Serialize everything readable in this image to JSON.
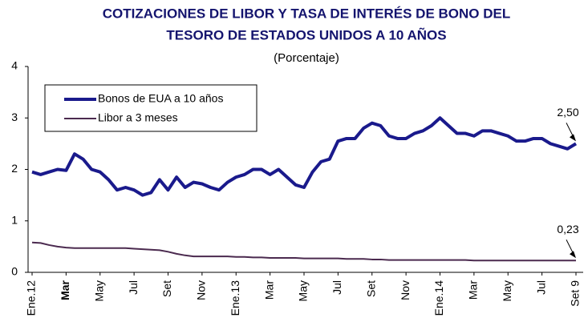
{
  "chart_data": {
    "type": "line",
    "title": [
      "COTIZACIONES DE LIBOR Y TASA DE INTERÉS DE BONO DEL",
      "TESORO DE ESTADOS UNIDOS A 10 AÑOS"
    ],
    "subtitle": "(Porcentaje)",
    "categories": [
      "Ene.12",
      null,
      null,
      null,
      "Mar",
      null,
      null,
      null,
      "May",
      null,
      null,
      null,
      "Jul",
      null,
      null,
      null,
      "Set",
      null,
      null,
      null,
      "Nov",
      null,
      null,
      null,
      "Ene.13",
      null,
      null,
      null,
      "Mar",
      null,
      null,
      null,
      "May",
      null,
      null,
      null,
      "Jul",
      null,
      null,
      null,
      "Set",
      null,
      null,
      null,
      "Nov",
      null,
      null,
      null,
      "Ene.14",
      null,
      null,
      null,
      "Mar",
      null,
      null,
      null,
      "May",
      null,
      null,
      null,
      "Jul",
      null,
      null,
      null,
      "Set 9"
    ],
    "series": [
      {
        "name": "Bonos de EUA a 10 años",
        "color": "#1a1a8c",
        "values": [
          1.95,
          1.9,
          1.95,
          2.0,
          1.98,
          2.3,
          2.2,
          2.0,
          1.95,
          1.8,
          1.6,
          1.65,
          1.6,
          1.5,
          1.55,
          1.8,
          1.6,
          1.85,
          1.65,
          1.75,
          1.72,
          1.65,
          1.6,
          1.75,
          1.85,
          1.9,
          2.0,
          2.0,
          1.9,
          2.0,
          1.85,
          1.7,
          1.65,
          1.95,
          2.15,
          2.2,
          2.55,
          2.6,
          2.6,
          2.8,
          2.9,
          2.85,
          2.65,
          2.6,
          2.6,
          2.7,
          2.75,
          2.85,
          3.0,
          2.85,
          2.7,
          2.7,
          2.65,
          2.75,
          2.75,
          2.7,
          2.65,
          2.55,
          2.55,
          2.6,
          2.6,
          2.5,
          2.45,
          2.4,
          2.5
        ],
        "value_labels": [
          null,
          null,
          null,
          null,
          null,
          null,
          null,
          null,
          null,
          null,
          null,
          null,
          null,
          null,
          null,
          null,
          null,
          null,
          null,
          null,
          null,
          null,
          null,
          null,
          null,
          null,
          null,
          null,
          null,
          null,
          null,
          null,
          null,
          null,
          null,
          null,
          null,
          null,
          null,
          null,
          null,
          null,
          null,
          null,
          null,
          null,
          null,
          null,
          null,
          null,
          null,
          null,
          null,
          null,
          null,
          null,
          null,
          null,
          null,
          null,
          null,
          null,
          null,
          null,
          "2,50"
        ]
      },
      {
        "name": "Libor a 3 meses",
        "color": "#4b2a4f",
        "values": [
          0.58,
          0.57,
          0.53,
          0.5,
          0.48,
          0.47,
          0.47,
          0.47,
          0.47,
          0.47,
          0.47,
          0.47,
          0.46,
          0.45,
          0.44,
          0.43,
          0.4,
          0.36,
          0.33,
          0.31,
          0.31,
          0.31,
          0.31,
          0.31,
          0.3,
          0.3,
          0.29,
          0.29,
          0.28,
          0.28,
          0.28,
          0.28,
          0.27,
          0.27,
          0.27,
          0.27,
          0.27,
          0.26,
          0.26,
          0.26,
          0.25,
          0.25,
          0.24,
          0.24,
          0.24,
          0.24,
          0.24,
          0.24,
          0.24,
          0.24,
          0.24,
          0.24,
          0.23,
          0.23,
          0.23,
          0.23,
          0.23,
          0.23,
          0.23,
          0.23,
          0.23,
          0.23,
          0.23,
          0.23,
          0.23
        ],
        "value_labels": [
          null,
          null,
          null,
          null,
          null,
          null,
          null,
          null,
          null,
          null,
          null,
          null,
          null,
          null,
          null,
          null,
          null,
          null,
          null,
          null,
          null,
          null,
          null,
          null,
          null,
          null,
          null,
          null,
          null,
          null,
          null,
          null,
          null,
          null,
          null,
          null,
          null,
          null,
          null,
          null,
          null,
          null,
          null,
          null,
          null,
          null,
          null,
          null,
          null,
          null,
          null,
          null,
          null,
          null,
          null,
          null,
          null,
          null,
          null,
          null,
          null,
          null,
          null,
          null,
          "0,23"
        ]
      }
    ],
    "ylim": [
      0,
      4
    ],
    "yticks": [
      0,
      1,
      2,
      3,
      4
    ],
    "grid": false,
    "legend": "upper left"
  }
}
